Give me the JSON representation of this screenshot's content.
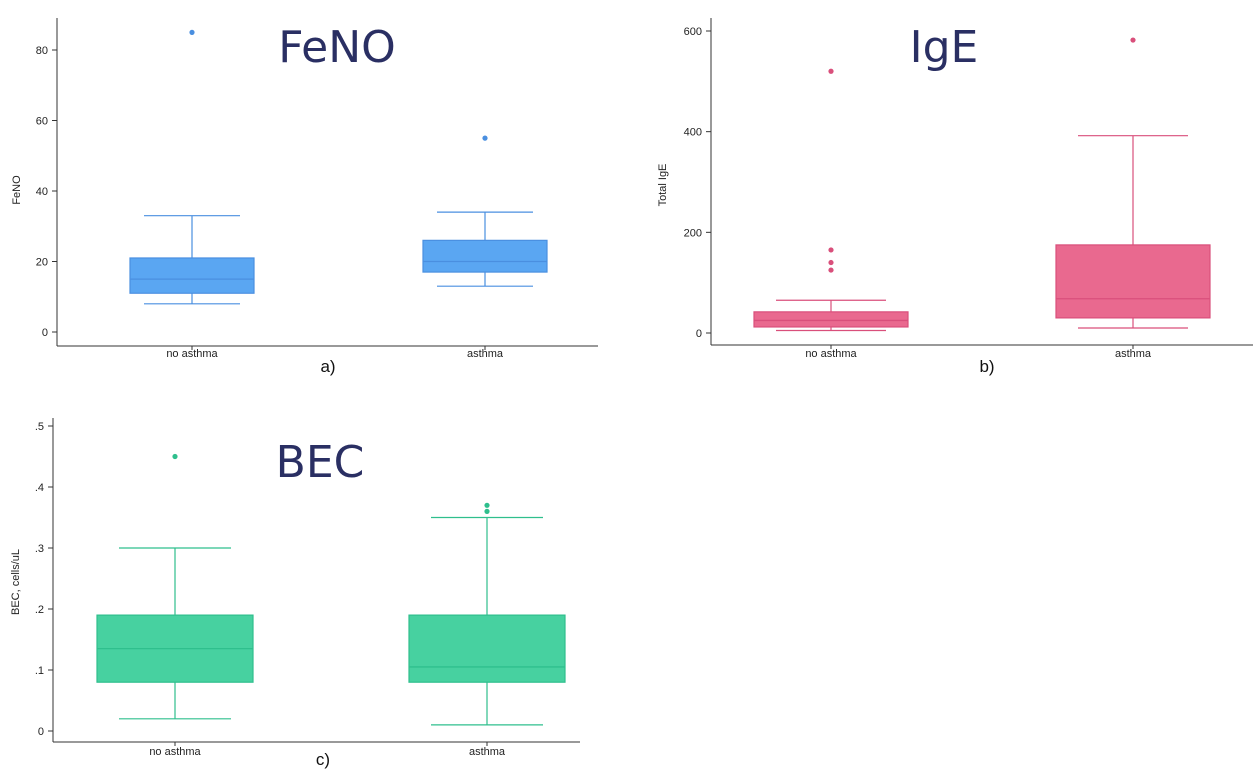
{
  "chart_data": [
    {
      "type": "box",
      "panel_label": "a)",
      "title": "FeNO",
      "ylabel": "FeNO",
      "xlabel": "",
      "categories": [
        "no asthma",
        "asthma"
      ],
      "yticks": [
        0,
        20,
        40,
        60,
        80
      ],
      "ytick_labels": [
        "0",
        "20",
        "40",
        "60",
        "80"
      ],
      "ylim": [
        -3,
        90
      ],
      "grid": false,
      "color": "#5aa6f2",
      "edge_color": "#4a8fe0",
      "boxes": [
        {
          "category": "no asthma",
          "whisker_low": 8,
          "q1": 11,
          "median": 15,
          "q3": 21,
          "whisker_high": 33,
          "outliers": [
            85
          ]
        },
        {
          "category": "asthma",
          "whisker_low": 13,
          "q1": 17,
          "median": 20,
          "q3": 26,
          "whisker_high": 34,
          "outliers": [
            55
          ]
        }
      ]
    },
    {
      "type": "box",
      "panel_label": "b)",
      "title": "IgE",
      "ylabel": "Total IgE",
      "xlabel": "",
      "categories": [
        "no asthma",
        "asthma"
      ],
      "yticks": [
        0,
        200,
        400,
        600
      ],
      "ytick_labels": [
        "0",
        "200",
        "400",
        "600"
      ],
      "ylim": [
        -20,
        630
      ],
      "grid": false,
      "color": "#e9698f",
      "edge_color": "#d94f7b",
      "boxes": [
        {
          "category": "no asthma",
          "whisker_low": 5,
          "q1": 12,
          "median": 25,
          "q3": 42,
          "whisker_high": 65,
          "outliers": [
            125,
            140,
            165,
            520
          ]
        },
        {
          "category": "asthma",
          "whisker_low": 10,
          "q1": 30,
          "median": 68,
          "q3": 175,
          "whisker_high": 392,
          "outliers": [
            582
          ]
        }
      ]
    },
    {
      "type": "box",
      "panel_label": "c)",
      "title": "BEC",
      "ylabel": "BEC, cells/uL",
      "xlabel": "",
      "categories": [
        "no asthma",
        "asthma"
      ],
      "yticks": [
        0,
        0.1,
        0.2,
        0.3,
        0.4,
        0.5
      ],
      "ytick_labels": [
        "0",
        ".1",
        ".2",
        ".3",
        ".4",
        ".5"
      ],
      "ylim": [
        -0.02,
        0.52
      ],
      "grid": false,
      "color": "#47d1a0",
      "edge_color": "#2fbf8d",
      "boxes": [
        {
          "category": "no asthma",
          "whisker_low": 0.02,
          "q1": 0.08,
          "median": 0.135,
          "q3": 0.19,
          "whisker_high": 0.3,
          "outliers": [
            0.45
          ]
        },
        {
          "category": "asthma",
          "whisker_low": 0.01,
          "q1": 0.08,
          "median": 0.105,
          "q3": 0.19,
          "whisker_high": 0.35,
          "outliers": [
            0.36,
            0.37
          ]
        }
      ]
    }
  ]
}
